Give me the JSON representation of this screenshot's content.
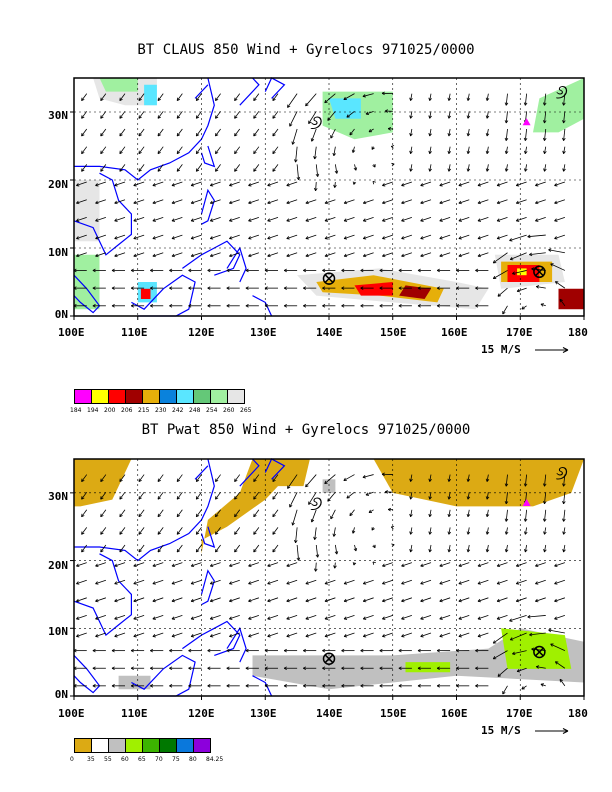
{
  "panel1": {
    "title": "BT CLAUS 850 Wind + Gyrelocs 971025/0000",
    "lat_labels": [
      "30N",
      "20N",
      "10N",
      "0N"
    ],
    "lon_labels": [
      "100E",
      "110E",
      "120E",
      "130E",
      "140E",
      "150E",
      "160E",
      "170E",
      "180"
    ],
    "speed_label": "15 M/S",
    "colorbar": {
      "colors": [
        "#ff00ff",
        "#ffff00",
        "#ff0000",
        "#a00000",
        "#e6af0a",
        "#0a82dc",
        "#5ae6ff",
        "#64c878",
        "#a0f0a0",
        "#e6e6e6"
      ],
      "labels": [
        "184",
        "194",
        "200",
        "206",
        "215",
        "230",
        "242",
        "248",
        "254",
        "260",
        "265"
      ]
    },
    "gyre_markers": [
      "x-circle",
      "x-circle"
    ],
    "storm_symbols": [
      "tropical-cyclone",
      "tropical-cyclone"
    ]
  },
  "panel2": {
    "title": "BT Pwat 850 Wind + Gyrelocs 971025/0000",
    "lat_labels": [
      "30N",
      "20N",
      "10N",
      "0N"
    ],
    "lon_labels": [
      "100E",
      "110E",
      "120E",
      "130E",
      "140E",
      "150E",
      "160E",
      "170E",
      "180"
    ],
    "speed_label": "15 M/S",
    "colorbar": {
      "colors": [
        "#dcaa14",
        "#ffffff",
        "#c0c0c0",
        "#a0f000",
        "#3cb400",
        "#007800",
        "#0a78dc",
        "#8c00dc"
      ],
      "labels": [
        "0",
        "35",
        "55",
        "60",
        "65",
        "70",
        "75",
        "80",
        "84.25"
      ]
    },
    "gyre_markers": [
      "x-circle",
      "x-circle"
    ],
    "storm_symbols": [
      "tropical-cyclone",
      "tropical-cyclone"
    ]
  },
  "colors": {
    "coastline": "#0000ff",
    "frame": "#000000",
    "storm_marker": "#ff00ff"
  }
}
